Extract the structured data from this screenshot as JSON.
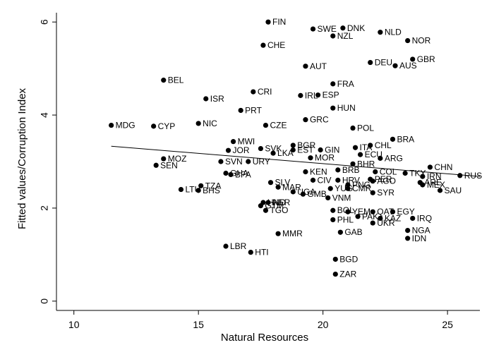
{
  "chart_data": {
    "type": "scatter",
    "xlabel": "Natural Resources",
    "ylabel": "Fitted values/Corruption Index",
    "xlim": [
      9.3,
      26.3
    ],
    "ylim": [
      -0.2,
      6.2
    ],
    "x_ticks": [
      10,
      15,
      20,
      25
    ],
    "y_ticks": [
      0,
      2,
      4,
      6
    ],
    "grid": false,
    "fit_line": {
      "x": [
        11.5,
        26.3
      ],
      "y": [
        3.33,
        2.68
      ]
    },
    "points": [
      {
        "label": "FIN",
        "x": 17.8,
        "y": 6.0
      },
      {
        "label": "SWE",
        "x": 19.6,
        "y": 5.85
      },
      {
        "label": "DNK",
        "x": 20.8,
        "y": 5.87
      },
      {
        "label": "NZL",
        "x": 20.4,
        "y": 5.7
      },
      {
        "label": "NLD",
        "x": 22.3,
        "y": 5.78
      },
      {
        "label": "NOR",
        "x": 23.4,
        "y": 5.6
      },
      {
        "label": "CHE",
        "x": 17.6,
        "y": 5.5
      },
      {
        "label": "GBR",
        "x": 23.6,
        "y": 5.2
      },
      {
        "label": "DEU",
        "x": 21.9,
        "y": 5.13
      },
      {
        "label": "AUS",
        "x": 22.9,
        "y": 5.06
      },
      {
        "label": "AUT",
        "x": 19.3,
        "y": 5.05
      },
      {
        "label": "BEL",
        "x": 13.6,
        "y": 4.75
      },
      {
        "label": "FRA",
        "x": 20.4,
        "y": 4.67
      },
      {
        "label": "ISR",
        "x": 15.3,
        "y": 4.35
      },
      {
        "label": "CRI",
        "x": 17.2,
        "y": 4.5
      },
      {
        "label": "IRL",
        "x": 19.1,
        "y": 4.42
      },
      {
        "label": "ESP",
        "x": 19.8,
        "y": 4.43
      },
      {
        "label": "HUN",
        "x": 20.4,
        "y": 4.15
      },
      {
        "label": "PRT",
        "x": 16.7,
        "y": 4.1
      },
      {
        "label": "GRC",
        "x": 19.3,
        "y": 3.9
      },
      {
        "label": "NIC",
        "x": 15.0,
        "y": 3.82
      },
      {
        "label": "MDG",
        "x": 11.5,
        "y": 3.78
      },
      {
        "label": "CYP",
        "x": 13.2,
        "y": 3.76
      },
      {
        "label": "CZE",
        "x": 17.7,
        "y": 3.78
      },
      {
        "label": "POL",
        "x": 21.2,
        "y": 3.72
      },
      {
        "label": "BRA",
        "x": 22.8,
        "y": 3.48
      },
      {
        "label": "MWI",
        "x": 16.4,
        "y": 3.43
      },
      {
        "label": "BGR",
        "x": 18.8,
        "y": 3.35
      },
      {
        "label": "CHL",
        "x": 21.9,
        "y": 3.35
      },
      {
        "label": "ITA",
        "x": 21.3,
        "y": 3.3
      },
      {
        "label": "JOR",
        "x": 16.2,
        "y": 3.24
      },
      {
        "label": "SVK",
        "x": 17.5,
        "y": 3.28
      },
      {
        "label": "EST",
        "x": 18.8,
        "y": 3.25
      },
      {
        "label": "GIN",
        "x": 19.9,
        "y": 3.25
      },
      {
        "label": "LKA",
        "x": 18.0,
        "y": 3.18
      },
      {
        "label": "MOR",
        "x": 19.5,
        "y": 3.08
      },
      {
        "label": "ECU",
        "x": 21.5,
        "y": 3.15
      },
      {
        "label": "ARG",
        "x": 22.3,
        "y": 3.07
      },
      {
        "label": "MOZ",
        "x": 13.6,
        "y": 3.06
      },
      {
        "label": "SVN",
        "x": 15.9,
        "y": 3.0
      },
      {
        "label": "URY",
        "x": 17.0,
        "y": 3.0
      },
      {
        "label": "SEN",
        "x": 13.3,
        "y": 2.92
      },
      {
        "label": "BHR",
        "x": 21.2,
        "y": 2.95
      },
      {
        "label": "CHN",
        "x": 24.3,
        "y": 2.88
      },
      {
        "label": "KEN",
        "x": 19.3,
        "y": 2.78
      },
      {
        "label": "BRB",
        "x": 20.6,
        "y": 2.82
      },
      {
        "label": "COL",
        "x": 22.1,
        "y": 2.78
      },
      {
        "label": "TKY",
        "x": 23.3,
        "y": 2.75
      },
      {
        "label": "GHA",
        "x": 16.1,
        "y": 2.75
      },
      {
        "label": "BFA",
        "x": 16.3,
        "y": 2.72
      },
      {
        "label": "RUS",
        "x": 25.5,
        "y": 2.7
      },
      {
        "label": "IRN",
        "x": 24.0,
        "y": 2.68
      },
      {
        "label": "CIV",
        "x": 19.6,
        "y": 2.6
      },
      {
        "label": "HRV",
        "x": 20.6,
        "y": 2.6
      },
      {
        "label": "PER",
        "x": 21.9,
        "y": 2.62
      },
      {
        "label": "AGO",
        "x": 22.0,
        "y": 2.58
      },
      {
        "label": "PNG",
        "x": 21.0,
        "y": 2.5
      },
      {
        "label": "MEX",
        "x": 24.0,
        "y": 2.5
      },
      {
        "label": "ARE",
        "x": 23.9,
        "y": 2.55
      },
      {
        "label": "SLV",
        "x": 17.9,
        "y": 2.55
      },
      {
        "label": "TZA",
        "x": 15.1,
        "y": 2.48
      },
      {
        "label": "MAR",
        "x": 18.2,
        "y": 2.45
      },
      {
        "label": "YUG",
        "x": 20.3,
        "y": 2.42
      },
      {
        "label": "CMR",
        "x": 21.0,
        "y": 2.42
      },
      {
        "label": "SAU",
        "x": 24.7,
        "y": 2.38
      },
      {
        "label": "LTU",
        "x": 14.3,
        "y": 2.4
      },
      {
        "label": "BHS",
        "x": 15.0,
        "y": 2.38
      },
      {
        "label": "SYR",
        "x": 22.0,
        "y": 2.33
      },
      {
        "label": "GMB",
        "x": 19.2,
        "y": 2.3
      },
      {
        "label": "VNM",
        "x": 20.2,
        "y": 2.22
      },
      {
        "label": "UGA",
        "x": 18.8,
        "y": 2.35
      },
      {
        "label": "HND",
        "x": 17.6,
        "y": 2.12
      },
      {
        "label": "NER",
        "x": 17.8,
        "y": 2.12
      },
      {
        "label": "GTM",
        "x": 17.5,
        "y": 2.05
      },
      {
        "label": "TGO",
        "x": 17.7,
        "y": 1.95
      },
      {
        "label": "BOL",
        "x": 20.4,
        "y": 1.95
      },
      {
        "label": "YEM",
        "x": 21.0,
        "y": 1.92
      },
      {
        "label": "QAT",
        "x": 22.0,
        "y": 1.92
      },
      {
        "label": "EGY",
        "x": 22.8,
        "y": 1.92
      },
      {
        "label": "PAK",
        "x": 21.4,
        "y": 1.82
      },
      {
        "label": "KAZ",
        "x": 22.3,
        "y": 1.78
      },
      {
        "label": "IRQ",
        "x": 23.6,
        "y": 1.78
      },
      {
        "label": "PHL",
        "x": 20.4,
        "y": 1.75
      },
      {
        "label": "UKR",
        "x": 22.0,
        "y": 1.68
      },
      {
        "label": "GAB",
        "x": 20.7,
        "y": 1.48
      },
      {
        "label": "MMR",
        "x": 18.2,
        "y": 1.45
      },
      {
        "label": "NGA",
        "x": 23.4,
        "y": 1.52
      },
      {
        "label": "IDN",
        "x": 23.4,
        "y": 1.35
      },
      {
        "label": "LBR",
        "x": 16.1,
        "y": 1.18
      },
      {
        "label": "HTI",
        "x": 17.1,
        "y": 1.05
      },
      {
        "label": "BGD",
        "x": 20.5,
        "y": 0.9
      },
      {
        "label": "ZAR",
        "x": 20.5,
        "y": 0.58
      }
    ]
  }
}
